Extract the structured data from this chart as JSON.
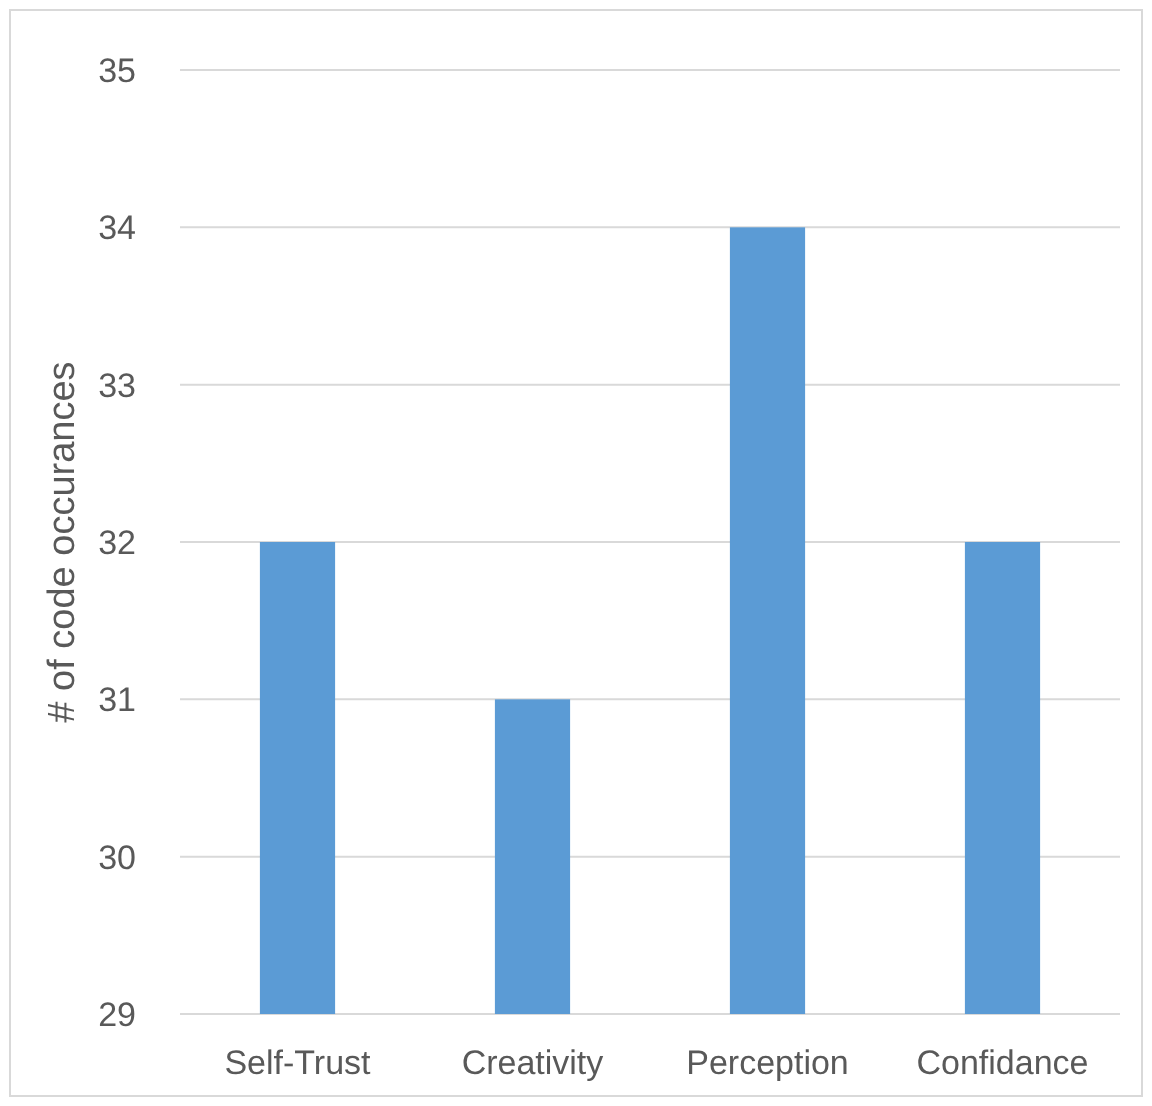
{
  "chart_data": {
    "type": "bar",
    "ylabel": "# of code occurances",
    "categories": [
      "Self-Trust",
      "Creativity",
      "Perception",
      "Confidance"
    ],
    "values": [
      32,
      31,
      34,
      32
    ],
    "color": "#5b9bd5",
    "ylim": [
      29,
      35
    ],
    "yticks": [
      29,
      30,
      31,
      32,
      33,
      34,
      35
    ],
    "grid": "y"
  }
}
